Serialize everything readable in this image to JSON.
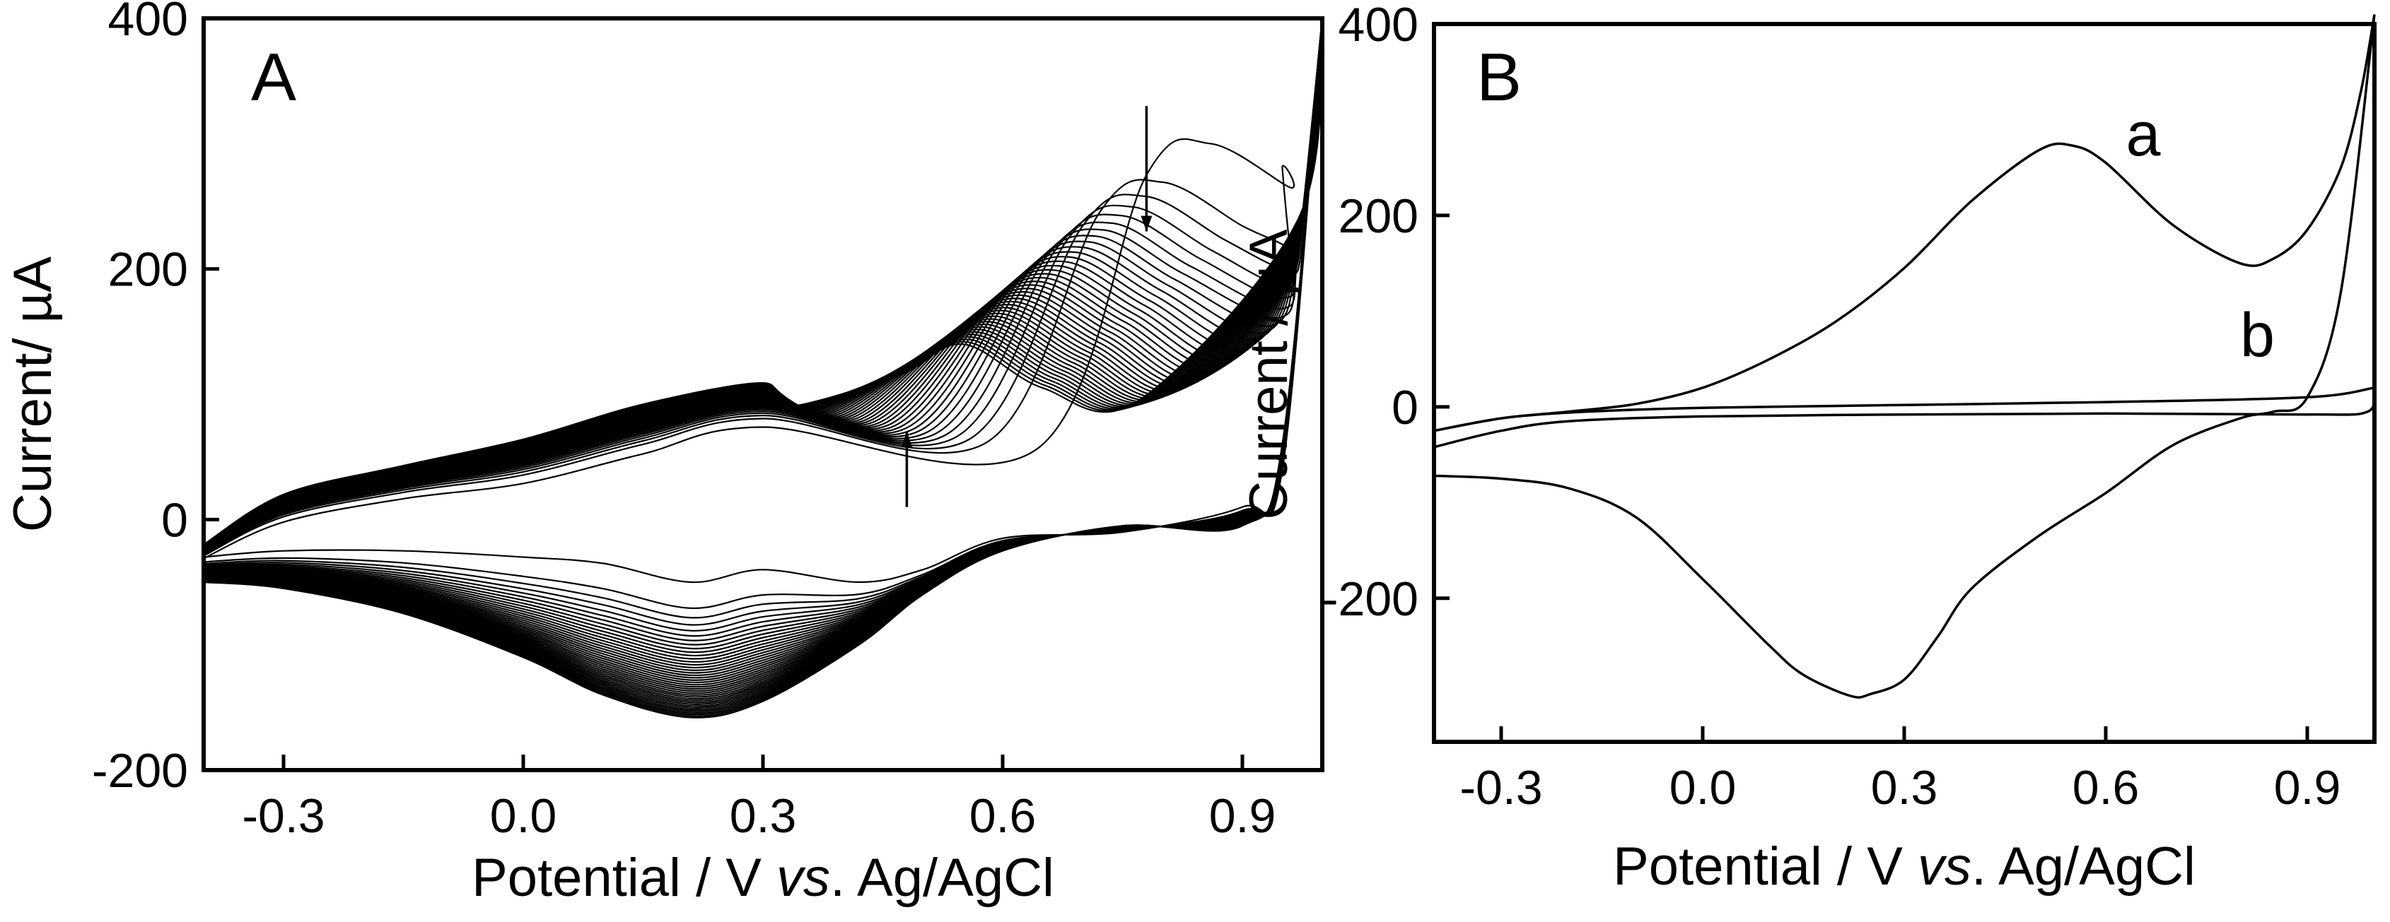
{
  "chart_data": [
    {
      "type": "line",
      "panel_label": "A",
      "title": "",
      "xlabel_parts": [
        "Potential / V ",
        "vs",
        ". Ag/AgCl"
      ],
      "ylabel": "Current/ µA",
      "xlim": [
        -0.4,
        1.0
      ],
      "ylim": [
        -200,
        400
      ],
      "xticks": [
        -0.3,
        0.0,
        0.3,
        0.6,
        0.9
      ],
      "xtick_labels": [
        "-0.3",
        "0.0",
        "0.3",
        "0.6",
        "0.9"
      ],
      "yticks": [
        -200,
        0,
        200,
        400
      ],
      "ytick_labels": [
        "-200",
        "0",
        "200",
        "400"
      ],
      "cycles": 40,
      "description_series": [
        {
          "name": "first cycle anodic peak",
          "x": 0.86,
          "y": 300
        },
        {
          "name": "last cycle anodic peak",
          "x": 0.55,
          "y": 140
        },
        {
          "name": "last cycle cathodic peak",
          "x": 0.21,
          "y": -158
        }
      ],
      "arrows": [
        {
          "direction": "down",
          "x": 0.78,
          "y_from": 330,
          "y_to": 230
        },
        {
          "direction": "up",
          "x": 0.48,
          "y_from": 10,
          "y_to": 70
        }
      ]
    },
    {
      "type": "line",
      "panel_label": "B",
      "title": "",
      "xlabel_parts": [
        "Potential / V ",
        "vs",
        ". Ag/AgCl"
      ],
      "ylabel": "Current / µA",
      "xlim": [
        -0.4,
        1.0
      ],
      "ylim": [
        -350,
        400
      ],
      "xticks": [
        -0.3,
        0.0,
        0.3,
        0.6,
        0.9
      ],
      "xtick_labels": [
        "-0.3",
        "0.0",
        "0.3",
        "0.6",
        "0.9"
      ],
      "yticks": [
        -200,
        0,
        200,
        400
      ],
      "ytick_labels": [
        "-200",
        "0",
        "200",
        "400"
      ],
      "series": [
        {
          "name": "a",
          "label_pos": {
            "x": 0.63,
            "y": 285
          },
          "anodic": {
            "x": [
              -0.4,
              -0.3,
              -0.2,
              -0.1,
              0.0,
              0.1,
              0.2,
              0.3,
              0.4,
              0.5,
              0.55,
              0.6,
              0.7,
              0.8,
              0.85,
              0.9,
              0.95,
              0.98,
              1.0
            ],
            "y": [
              -25,
              -12,
              -5,
              3,
              20,
              50,
              90,
              145,
              215,
              268,
              273,
              255,
              190,
              150,
              155,
              185,
              250,
              330,
              410
            ]
          },
          "cathodic": {
            "x": [
              1.0,
              0.95,
              0.9,
              0.85,
              0.8,
              0.7,
              0.6,
              0.5,
              0.4,
              0.35,
              0.3,
              0.25,
              0.22,
              0.15,
              0.1,
              0.0,
              -0.1,
              -0.2,
              -0.3,
              -0.4
            ],
            "y": [
              410,
              120,
              10,
              -5,
              -12,
              -40,
              -90,
              -135,
              -190,
              -240,
              -285,
              -300,
              -302,
              -280,
              -250,
              -180,
              -115,
              -85,
              -75,
              -72
            ]
          }
        },
        {
          "name": "b",
          "label_pos": {
            "x": 0.8,
            "y": 75
          },
          "anodic": {
            "x": [
              -0.4,
              -0.3,
              -0.2,
              -0.1,
              0.0,
              0.3,
              0.6,
              0.9,
              1.0
            ],
            "y": [
              -25,
              -12,
              -6,
              -3,
              -1,
              2,
              5,
              10,
              20
            ]
          },
          "cathodic": {
            "x": [
              1.0,
              0.99,
              0.9,
              0.6,
              0.3,
              0.0,
              -0.2,
              -0.3,
              -0.4
            ],
            "y": [
              20,
              -5,
              -8,
              -7,
              -8,
              -10,
              -15,
              -25,
              -42
            ]
          }
        }
      ]
    }
  ]
}
